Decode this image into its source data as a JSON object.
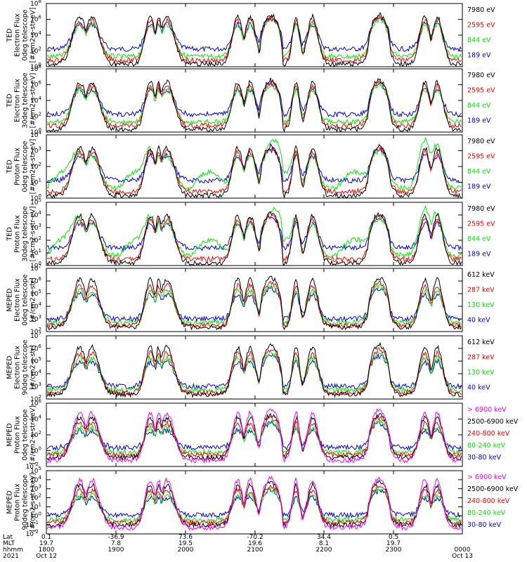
{
  "colors": {
    "black": "#000000",
    "red": "#ff0000",
    "green": "#00ee00",
    "blue": "#0000ff",
    "magenta": "#ff00ff"
  },
  "chart_data": [
    {
      "type": "line",
      "ylabel": [
        "TED",
        "Electron Flux",
        "0deg telescope",
        "[#/cm2-s-str-eV]"
      ],
      "ytick_exponents": [
        0,
        2,
        4,
        6,
        8
      ],
      "legend": [
        {
          "label": "7980 eV",
          "color": "black"
        },
        {
          "label": "2595 eV",
          "color": "red"
        },
        {
          "label": "844 eV",
          "color": "green"
        },
        {
          "label": "189 eV",
          "color": "blue"
        }
      ]
    },
    {
      "type": "line",
      "ylabel": [
        "TED",
        "Electron Flux",
        "30deg telescope",
        "[#/cm2-s-str-eV]"
      ],
      "ytick_exponents": [
        0,
        2,
        4,
        6,
        8
      ],
      "legend": [
        {
          "label": "7980 eV",
          "color": "black"
        },
        {
          "label": "2595 eV",
          "color": "red"
        },
        {
          "label": "844 eV",
          "color": "green"
        },
        {
          "label": "189 eV",
          "color": "blue"
        }
      ]
    },
    {
      "type": "line",
      "ylabel": [
        "TED",
        "Proton Flux",
        "0deg telescope",
        "[#/cm2-s-str-eV]"
      ],
      "ytick_exponents": [
        0,
        1,
        2,
        3,
        4
      ],
      "legend": [
        {
          "label": "7980 eV",
          "color": "black"
        },
        {
          "label": "2595 eV",
          "color": "red"
        },
        {
          "label": "844 eV",
          "color": "green"
        },
        {
          "label": "189 eV",
          "color": "blue"
        }
      ]
    },
    {
      "type": "line",
      "ylabel": [
        "TED",
        "Proton Flux",
        "30deg telescope",
        "[#/cm2-s-str-eV]"
      ],
      "ytick_exponents": [
        0,
        1,
        2,
        3,
        4,
        5
      ],
      "legend": [
        {
          "label": "7980 eV",
          "color": "black"
        },
        {
          "label": "2595 eV",
          "color": "red"
        },
        {
          "label": "844 eV",
          "color": "green"
        },
        {
          "label": "189 eV",
          "color": "blue"
        }
      ]
    },
    {
      "type": "line",
      "ylabel": [
        "MEPED",
        "Electron Flux",
        "0deg telescope",
        "[#/cm2-s-str]"
      ],
      "ytick_exponents": [
        2,
        3,
        4,
        5,
        6,
        7
      ],
      "legend": [
        {
          "label": "612 keV",
          "color": "black"
        },
        {
          "label": "287 keV",
          "color": "red"
        },
        {
          "label": "130 keV",
          "color": "green"
        },
        {
          "label": "40 keV",
          "color": "blue"
        }
      ]
    },
    {
      "type": "line",
      "ylabel": [
        "MEPED",
        "Electron Flux",
        "90deg telescope",
        "[#/cm2-s-str]"
      ],
      "ytick_exponents": [
        2,
        3,
        4,
        5,
        6,
        7
      ],
      "legend": [
        {
          "label": "612 keV",
          "color": "black"
        },
        {
          "label": "287 keV",
          "color": "red"
        },
        {
          "label": "130 keV",
          "color": "green"
        },
        {
          "label": "40 keV",
          "color": "blue"
        }
      ]
    },
    {
      "type": "line",
      "ylabel": [
        "MEPED",
        "Proton Flux",
        "0deg telescope",
        "[#/cm2-s-str-keV]"
      ],
      "ytick_exponents": [
        -2,
        0,
        2,
        4,
        6
      ],
      "legend": [
        {
          "label": "> 6900 keV",
          "color": "magenta"
        },
        {
          "label": "2500-6900 keV",
          "color": "black"
        },
        {
          "label": "240-800 keV",
          "color": "red"
        },
        {
          "label": "80-240 keV",
          "color": "green"
        },
        {
          "label": "30-80 keV",
          "color": "blue"
        }
      ]
    },
    {
      "type": "line",
      "ylabel": [
        "MEPED",
        "Proton Flux",
        "90deg telescope",
        "[#/cm2-s-str-keV]"
      ],
      "ytick_exponents": [
        -2,
        -1,
        0,
        1,
        2,
        3,
        4,
        5
      ],
      "legend": [
        {
          "label": "> 6900 keV",
          "color": "magenta"
        },
        {
          "label": "2500-6900 keV",
          "color": "black"
        },
        {
          "label": "240-800 keV",
          "color": "red"
        },
        {
          "label": "80-240 keV",
          "color": "green"
        },
        {
          "label": "30-80 keV",
          "color": "blue"
        }
      ]
    }
  ],
  "xaxis": {
    "row_labels": [
      "Lat",
      "MLT",
      "hhmm",
      "2021"
    ],
    "ticks": [
      {
        "lat": "0.1",
        "mlt": "19.7",
        "hhmm": "1800",
        "date": "Oct 12"
      },
      {
        "lat": "-36.9",
        "mlt": "7.8",
        "hhmm": "1900",
        "date": ""
      },
      {
        "lat": "73.6",
        "mlt": "19.5",
        "hhmm": "2000",
        "date": ""
      },
      {
        "lat": "-70.2",
        "mlt": "19.6",
        "hhmm": "2100",
        "date": ""
      },
      {
        "lat": "34.4",
        "mlt": "8.1",
        "hhmm": "2200",
        "date": ""
      },
      {
        "lat": "0.5",
        "mlt": "19.7",
        "hhmm": "2300",
        "date": ""
      },
      {
        "lat": "",
        "mlt": "",
        "hhmm": "0000",
        "date": "Oct 13"
      }
    ]
  }
}
